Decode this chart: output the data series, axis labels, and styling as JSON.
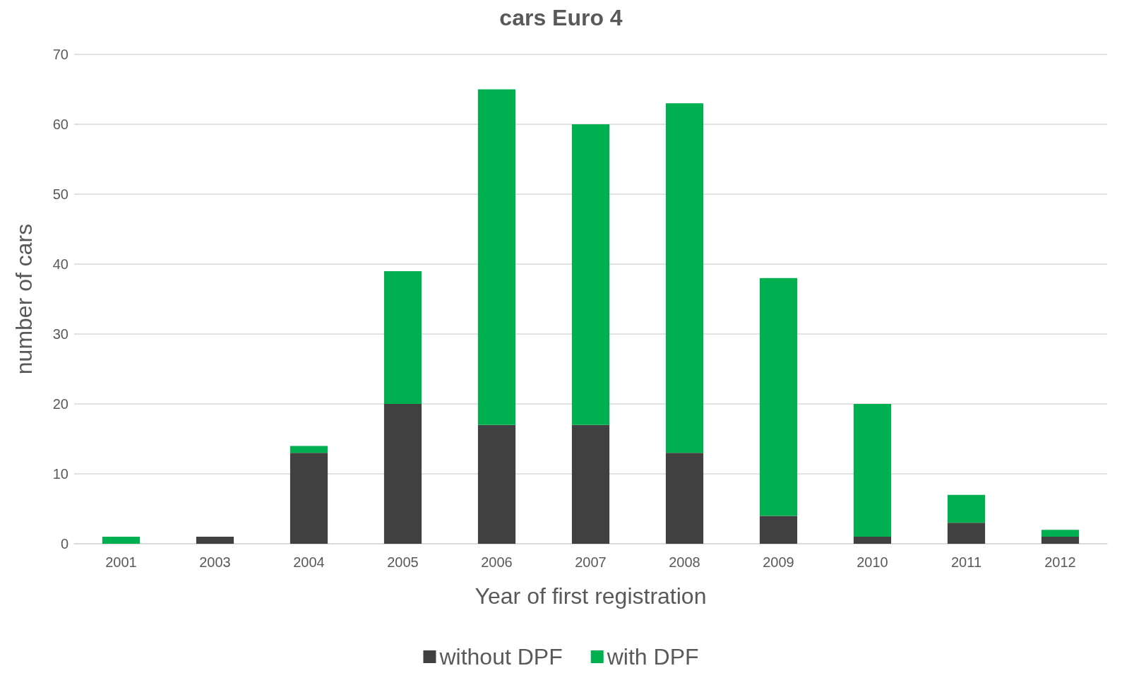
{
  "chart_data": {
    "type": "bar",
    "title": "cars Euro 4",
    "xlabel": "Year of first registration",
    "ylabel": "number of cars",
    "categories": [
      "2001",
      "2003",
      "2004",
      "2005",
      "2006",
      "2007",
      "2008",
      "2009",
      "2010",
      "2011",
      "2012"
    ],
    "series": [
      {
        "name": "without DPF",
        "color": "#404040",
        "values": [
          0,
          1,
          13,
          20,
          17,
          17,
          13,
          4,
          1,
          3,
          1
        ]
      },
      {
        "name": "with DPF",
        "color": "#00b050",
        "values": [
          1,
          0,
          1,
          19,
          48,
          43,
          50,
          34,
          19,
          4,
          1
        ]
      }
    ],
    "stacked": true,
    "ylim": [
      0,
      70
    ],
    "yticks": [
      0,
      10,
      20,
      30,
      40,
      50,
      60,
      70
    ],
    "grid": "y",
    "legend": "bottom"
  }
}
